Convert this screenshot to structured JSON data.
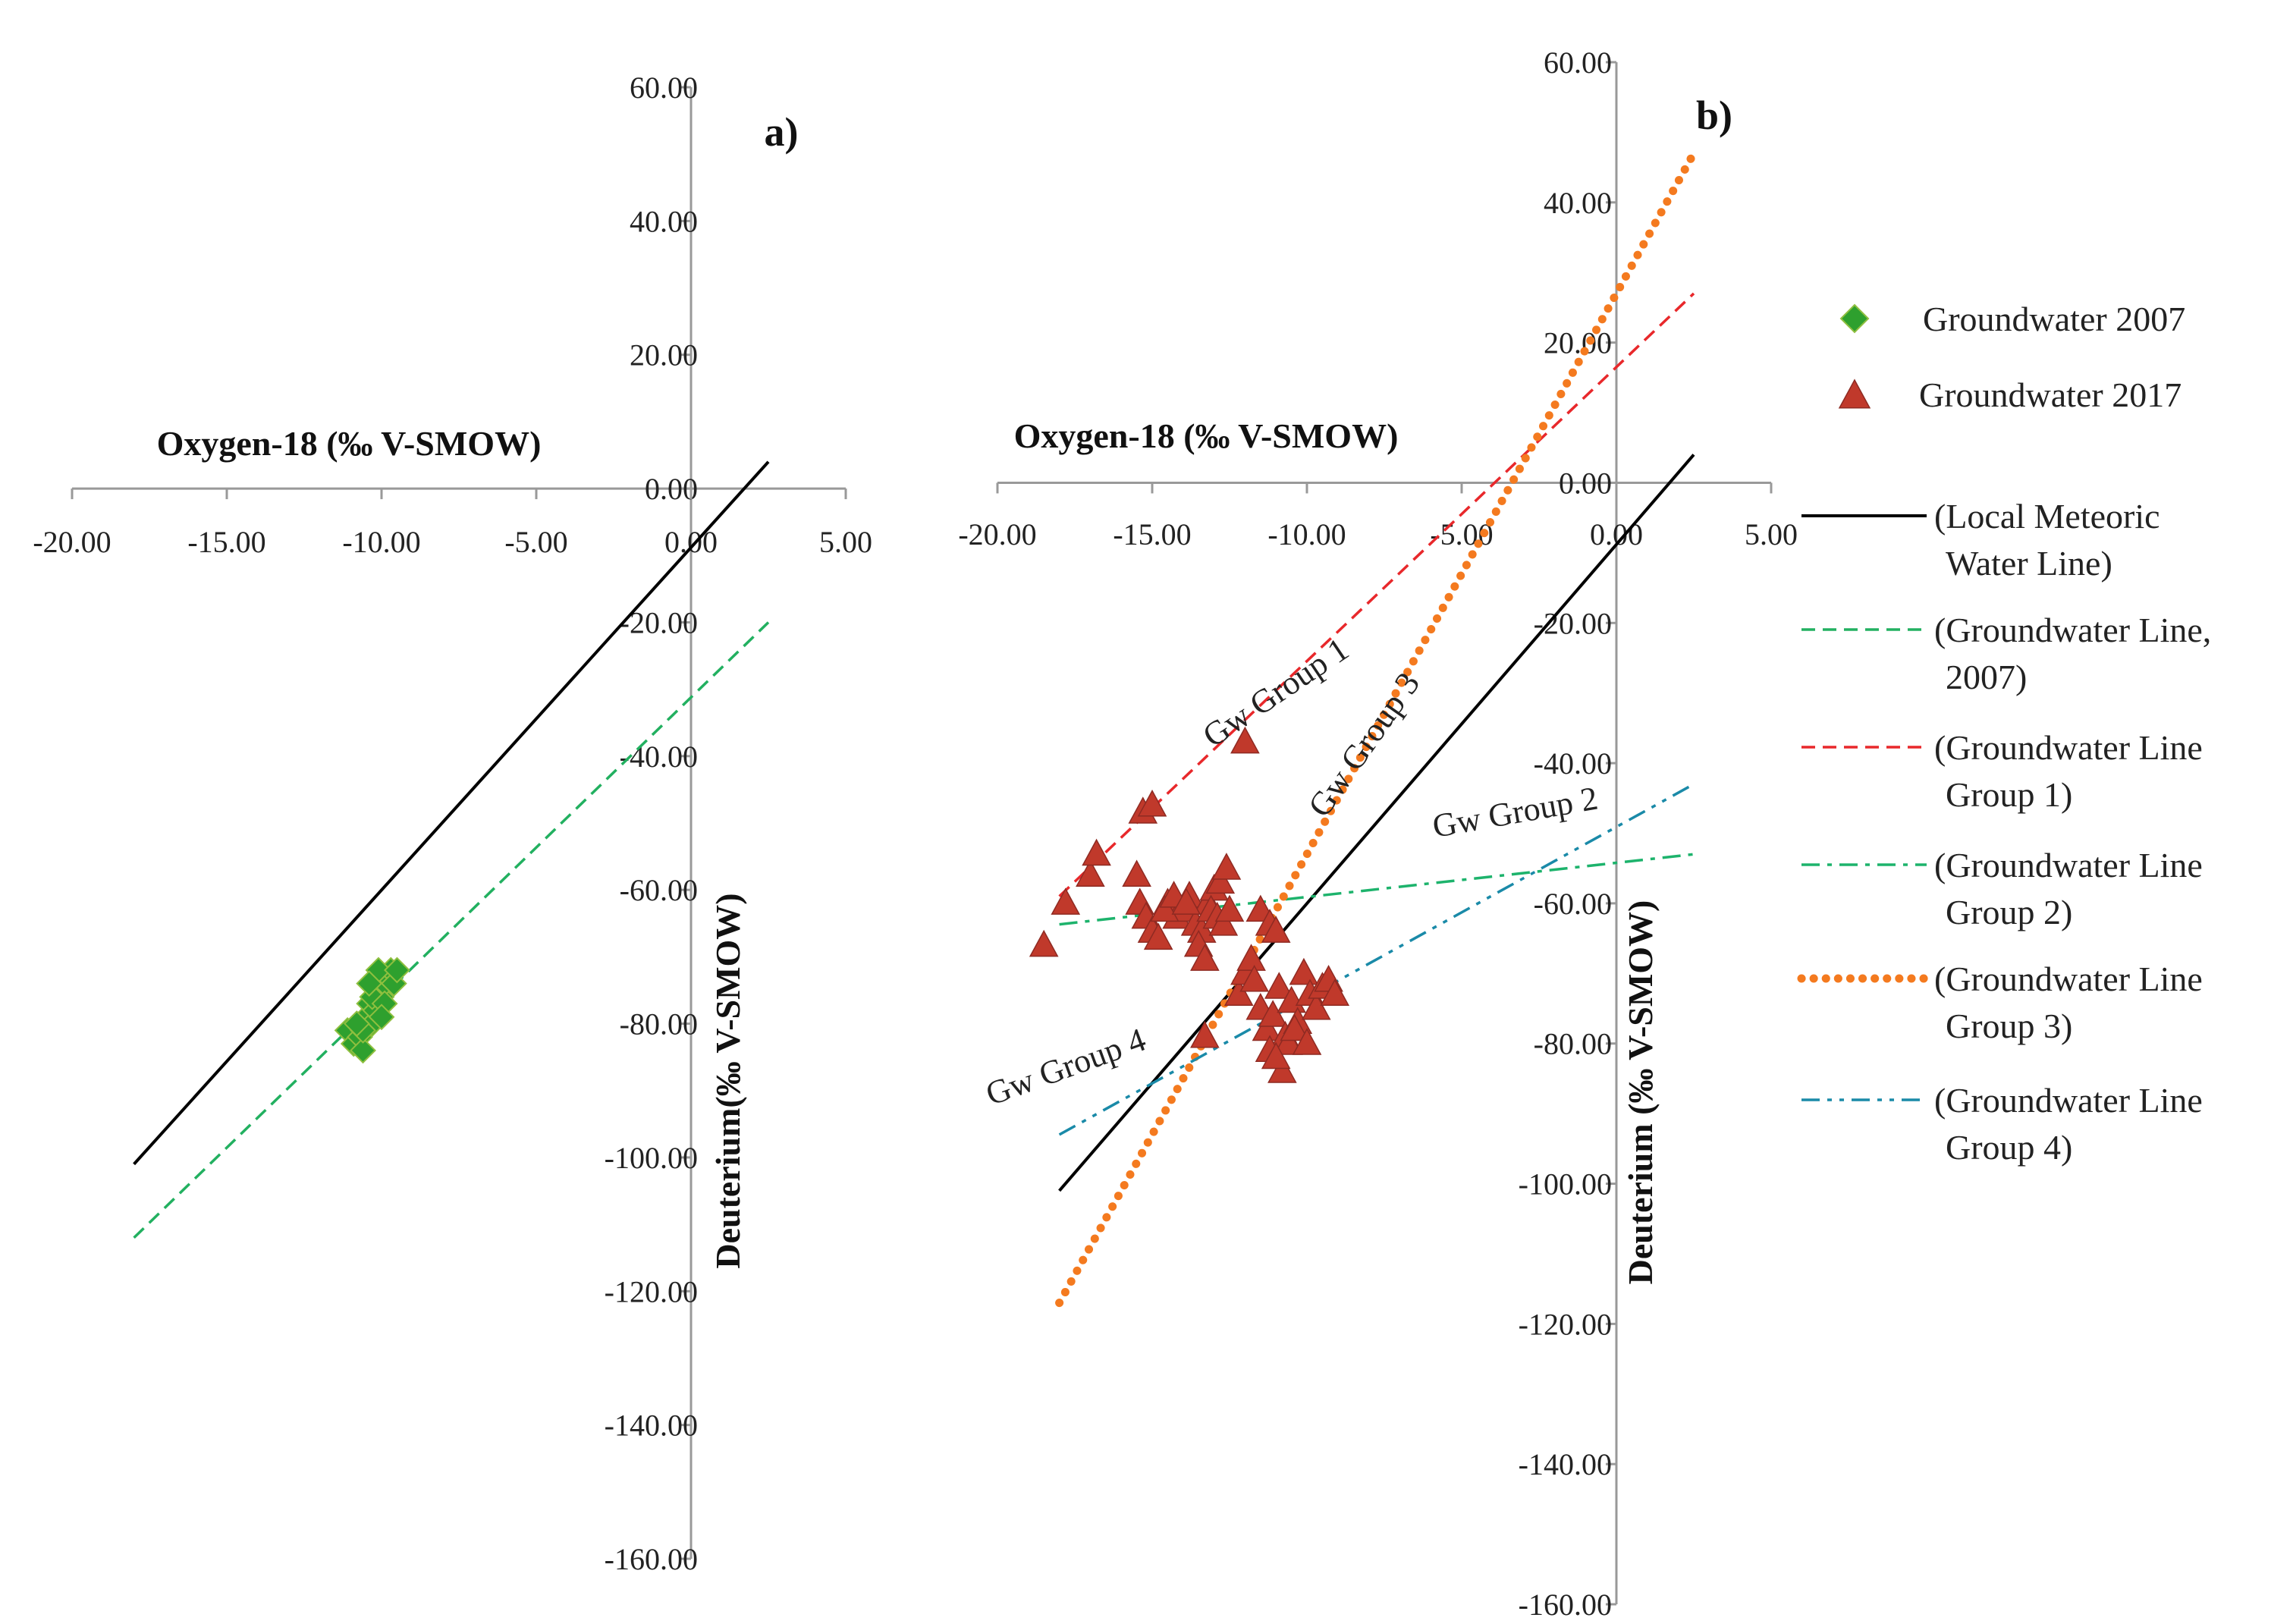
{
  "chart_data": [
    {
      "panel_label": "a)",
      "type": "scatter",
      "xlabel": "Oxygen-18 (‰ V-SMOW)",
      "ylabel": "Deuterium(‰ V-SMOW)",
      "xlim": [
        -20,
        5
      ],
      "ylim": [
        -160,
        60
      ],
      "xticks": [
        "-20.00",
        "-15.00",
        "-10.00",
        "-5.00",
        "0.00",
        "5.00"
      ],
      "yticks": [
        "60.00",
        "40.00",
        "20.00",
        "0.00",
        "-20.00",
        "-40.00",
        "-60.00",
        "-80.00",
        "-100.00",
        "-120.00",
        "-140.00",
        "-160.00"
      ],
      "series": [
        {
          "name": "Groundwater 2007",
          "kind": "points",
          "color": "#2ea02e",
          "x": [
            -11.1,
            -10.9,
            -10.7,
            -10.6,
            -10.5,
            -10.3,
            -10.4,
            -10.2,
            -10.1,
            -10.0,
            -9.9,
            -9.8,
            -9.7,
            -10.3,
            -10.6,
            -9.9,
            -9.6,
            -10.1,
            -10.8,
            -9.5,
            -10.0,
            -10.4
          ],
          "y": [
            -81,
            -83,
            -82,
            -84,
            -79,
            -80,
            -77,
            -78,
            -75,
            -76,
            -74,
            -73,
            -72,
            -76,
            -81,
            -77,
            -74,
            -72,
            -80,
            -72,
            -79,
            -74
          ]
        },
        {
          "name": "Local Meteoric Water Line",
          "kind": "line",
          "color": "#000000",
          "dash": "solid",
          "x": [
            -18,
            2.5
          ],
          "y": [
            -101,
            4
          ]
        },
        {
          "name": "Groundwater Line, 2007",
          "kind": "line",
          "color": "#22b060",
          "dash": "dashed",
          "x": [
            -18,
            2.5
          ],
          "y": [
            -112,
            -20
          ]
        }
      ]
    },
    {
      "panel_label": "b)",
      "type": "scatter",
      "xlabel": "Oxygen-18 (‰ V-SMOW)",
      "ylabel": "Deuterium (‰ V-SMOW)",
      "xlim": [
        -20,
        5
      ],
      "ylim": [
        -160,
        60
      ],
      "xticks": [
        "-20.00",
        "-15.00",
        "-10.00",
        "-5.00",
        "0.00",
        "5.00"
      ],
      "yticks": [
        "60.00",
        "40.00",
        "20.00",
        "0.00",
        "-20.00",
        "-40.00",
        "-60.00",
        "-80.00",
        "-100.00",
        "-120.00",
        "-140.00",
        "-160.00"
      ],
      "annotations": [
        "Gw Group 1",
        "Gw Group 3",
        "Gw Group 2",
        "Gw Group 4"
      ],
      "series": [
        {
          "name": "Groundwater 2017",
          "kind": "points",
          "color": "#c0392b",
          "x": [
            -18.5,
            -17.8,
            -17.0,
            -16.8,
            -15.5,
            -15.3,
            -15.0,
            -15.4,
            -15.2,
            -15.0,
            -14.8,
            -14.5,
            -14.2,
            -14.0,
            -13.8,
            -13.6,
            -13.4,
            -13.2,
            -13.0,
            -12.8,
            -12.6,
            -13.5,
            -13.3,
            -13.1,
            -12.9,
            -12.7,
            -14.6,
            -14.3,
            -13.9,
            -12.5,
            -12.0,
            -11.5,
            -11.2,
            -11.0,
            -12.2,
            -12.0,
            -11.8,
            -11.7,
            -11.5,
            -11.3,
            -11.1,
            -10.9,
            -10.7,
            -10.5,
            -10.3,
            -10.1,
            -9.9,
            -9.7,
            -9.5,
            -9.3,
            -9.1,
            -11.2,
            -10.8,
            -10.6,
            -10.4,
            -11.0,
            -10.0,
            -13.3
          ],
          "y": [
            -66,
            -60,
            -56,
            -53,
            -56,
            -47,
            -46,
            -60,
            -62,
            -64,
            -65,
            -60,
            -62,
            -61,
            -59,
            -63,
            -64,
            -60,
            -58,
            -57,
            -55,
            -66,
            -68,
            -61,
            -62,
            -63,
            -61,
            -59,
            -60,
            -61,
            -37,
            -61,
            -63,
            -64,
            -73,
            -70,
            -68,
            -71,
            -75,
            -78,
            -76,
            -72,
            -79,
            -74,
            -77,
            -70,
            -73,
            -75,
            -72,
            -71,
            -73,
            -81,
            -84,
            -80,
            -78,
            -82,
            -80,
            -79
          ]
        },
        {
          "name": "Local Meteoric Water Line",
          "kind": "line",
          "color": "#000000",
          "dash": "solid",
          "x": [
            -18,
            2.5
          ],
          "y": [
            -101,
            4
          ]
        },
        {
          "name": "Groundwater Line Group 1",
          "kind": "line",
          "color": "#e8282b",
          "dash": "dashed",
          "x": [
            -18,
            2.5
          ],
          "y": [
            -59,
            27
          ]
        },
        {
          "name": "Groundwater Line Group 2",
          "kind": "line",
          "color": "#1db36c",
          "dash": "dash-dot",
          "x": [
            -18,
            2.5
          ],
          "y": [
            -63,
            -53
          ]
        },
        {
          "name": "Groundwater Line Group 3",
          "kind": "line",
          "color": "#f47a1f",
          "dash": "dotted",
          "x": [
            -18,
            2.5
          ],
          "y": [
            -117,
            47
          ]
        },
        {
          "name": "Groundwater Line Group 4",
          "kind": "line",
          "color": "#1a8aa8",
          "dash": "dash-dot-dot",
          "x": [
            -18,
            2.5
          ],
          "y": [
            -93,
            -43
          ]
        }
      ]
    }
  ],
  "legend": {
    "items": [
      {
        "text1": "Groundwater 2007",
        "text2": "",
        "marker": "diamond",
        "color": "#2ea02e"
      },
      {
        "text1": "Groundwater 2017",
        "text2": "",
        "marker": "triangle",
        "color": "#c0392b"
      },
      {
        "text1": "(Local Meteoric",
        "text2": "Water Line)",
        "marker": "solid",
        "color": "#000000"
      },
      {
        "text1": "(Groundwater Line,",
        "text2": "2007)",
        "marker": "dashed",
        "color": "#22b060"
      },
      {
        "text1": "(Groundwater Line",
        "text2": "Group 1)",
        "marker": "dashed",
        "color": "#e8282b"
      },
      {
        "text1": "(Groundwater Line",
        "text2": "Group 2)",
        "marker": "dash-dot",
        "color": "#1db36c"
      },
      {
        "text1": "(Groundwater Line",
        "text2": "Group 3)",
        "marker": "dotted",
        "color": "#f47a1f"
      },
      {
        "text1": "(Groundwater Line",
        "text2": "Group 4)",
        "marker": "dash-dot-dot",
        "color": "#1a8aa8"
      }
    ]
  }
}
